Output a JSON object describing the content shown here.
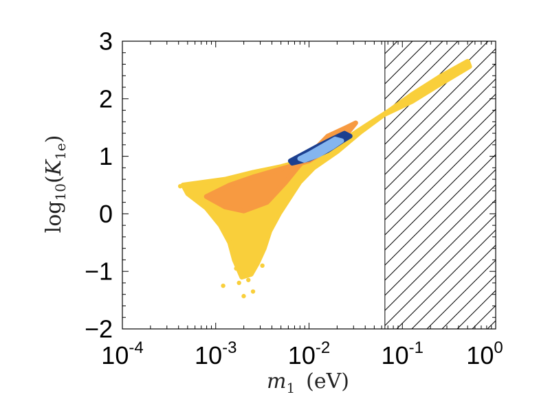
{
  "chart_data": {
    "type": "scatter",
    "title": "",
    "xlabel": {
      "var": "m",
      "sub": "1",
      "unit": "(eV)"
    },
    "ylabel": {
      "fn": "log",
      "fn_sub": "10",
      "var": "K",
      "var_sub": "1e"
    },
    "x_scale": "log",
    "xlim_log10": [
      -4,
      0
    ],
    "ylim": [
      -2,
      3
    ],
    "x_tick_labels": [
      {
        "exp": -4,
        "base": "10",
        "sup": "-4"
      },
      {
        "exp": -3,
        "base": "10",
        "sup": "-3"
      },
      {
        "exp": -2,
        "base": "10",
        "sup": "-2"
      },
      {
        "exp": -1,
        "base": "10",
        "sup": "-1"
      },
      {
        "exp": 0,
        "base": "10",
        "sup": "0"
      }
    ],
    "y_tick_labels": [
      {
        "value": 3,
        "text": "3"
      },
      {
        "value": 2,
        "text": "2"
      },
      {
        "value": 1,
        "text": "1"
      },
      {
        "value": 0,
        "text": "0"
      },
      {
        "value": -1,
        "text": "−1"
      },
      {
        "value": -2,
        "text": "−2"
      }
    ],
    "excluded_region": {
      "x_min": 0.065,
      "x_max": 1.0,
      "style": "hatched"
    },
    "series": [
      {
        "name": "yellow region",
        "color": "#f9cf3b",
        "outline": [
          [
            -3.35,
            0.5
          ],
          [
            -2.9,
            0.6
          ],
          [
            -2.6,
            0.72
          ],
          [
            -2.3,
            0.82
          ],
          [
            -2.0,
            0.95
          ],
          [
            -1.7,
            1.2
          ],
          [
            -1.4,
            1.52
          ],
          [
            -1.15,
            1.78
          ],
          [
            -0.9,
            2.07
          ],
          [
            -0.6,
            2.38
          ],
          [
            -0.3,
            2.65
          ],
          [
            -0.28,
            2.56
          ],
          [
            -0.6,
            2.25
          ],
          [
            -0.9,
            1.95
          ],
          [
            -1.2,
            1.72
          ],
          [
            -1.45,
            1.42
          ],
          [
            -1.7,
            1.08
          ],
          [
            -1.95,
            0.8
          ],
          [
            -2.1,
            0.55
          ],
          [
            -2.2,
            0.3
          ],
          [
            -2.32,
            0.0
          ],
          [
            -2.42,
            -0.3
          ],
          [
            -2.48,
            -0.6
          ],
          [
            -2.55,
            -0.85
          ],
          [
            -2.62,
            -1.05
          ],
          [
            -2.72,
            -1.1
          ],
          [
            -2.8,
            -0.8
          ],
          [
            -2.85,
            -0.5
          ],
          [
            -2.95,
            -0.2
          ],
          [
            -3.1,
            0.1
          ],
          [
            -3.3,
            0.35
          ]
        ],
        "points": [
          [
            -2.92,
            -1.25
          ],
          [
            -2.7,
            -1.43
          ],
          [
            -2.6,
            -1.35
          ],
          [
            -2.75,
            -1.2
          ],
          [
            -2.65,
            -1.15
          ],
          [
            -3.38,
            0.48
          ],
          [
            -2.5,
            -0.9
          ],
          [
            -2.78,
            -0.95
          ]
        ]
      },
      {
        "name": "orange region",
        "color": "#f79a41",
        "outline": [
          [
            -3.1,
            0.3
          ],
          [
            -2.85,
            0.5
          ],
          [
            -2.6,
            0.64
          ],
          [
            -2.3,
            0.78
          ],
          [
            -2.0,
            0.92
          ],
          [
            -1.8,
            1.12
          ],
          [
            -1.6,
            1.38
          ],
          [
            -1.5,
            1.58
          ],
          [
            -1.6,
            1.5
          ],
          [
            -1.8,
            1.35
          ],
          [
            -1.95,
            1.1
          ],
          [
            -2.1,
            0.85
          ],
          [
            -2.25,
            0.55
          ],
          [
            -2.45,
            0.2
          ],
          [
            -2.7,
            0.05
          ],
          [
            -2.9,
            0.12
          ]
        ]
      },
      {
        "name": "dark blue region",
        "color": "#1c3f8f",
        "outline": [
          [
            -2.18,
            0.88
          ],
          [
            -2.0,
            0.95
          ],
          [
            -1.8,
            1.1
          ],
          [
            -1.65,
            1.26
          ],
          [
            -1.56,
            1.35
          ],
          [
            -1.62,
            1.4
          ],
          [
            -1.75,
            1.3
          ],
          [
            -1.9,
            1.18
          ],
          [
            -2.05,
            1.05
          ],
          [
            -2.2,
            0.92
          ]
        ]
      },
      {
        "name": "light blue region",
        "color": "#84b5ef",
        "outline": [
          [
            -2.05,
            0.93
          ],
          [
            -1.9,
            1.02
          ],
          [
            -1.75,
            1.16
          ],
          [
            -1.65,
            1.27
          ],
          [
            -1.72,
            1.3
          ],
          [
            -1.85,
            1.18
          ],
          [
            -2.0,
            1.04
          ],
          [
            -2.1,
            0.96
          ]
        ]
      }
    ]
  }
}
